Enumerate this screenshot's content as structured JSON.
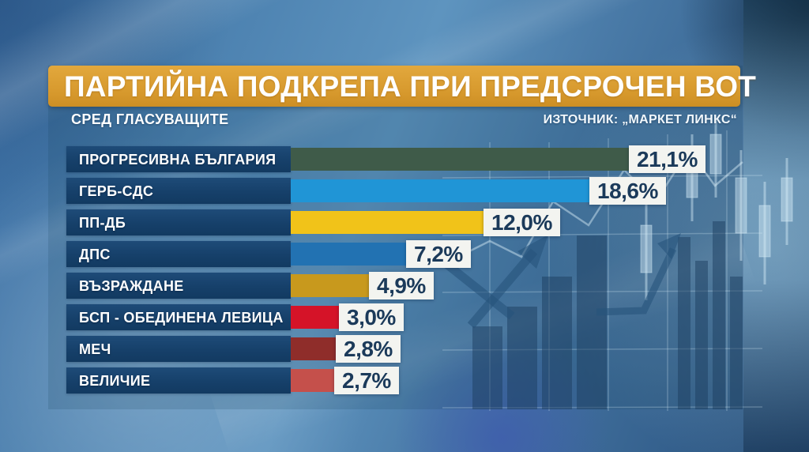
{
  "header": {
    "title": "ПАРТИЙНА ПОДКРЕПА ПРИ ПРЕДСРОЧЕН ВОТ",
    "subtitle": "СРЕД ГЛАСУВАЩИТЕ",
    "source": "ИЗТОЧНИК: „МАРКЕТ ЛИНКС“"
  },
  "chart_data": {
    "type": "bar",
    "orientation": "horizontal",
    "title": "ПАРТИЙНА ПОДКРЕПА ПРИ ПРЕДСРОЧЕН ВОТ",
    "subtitle": "СРЕД ГЛАСУВАЩИТЕ",
    "source": "ИЗТОЧНИК: „МАРКЕТ ЛИНКС“",
    "categories": [
      "ПРОГРЕСИВНА БЪЛГАРИЯ",
      "ГЕРБ-СДС",
      "ПП-ДБ",
      "ДПС",
      "ВЪЗРАЖДАНЕ",
      "БСП - ОБЕДИНЕНА ЛЕВИЦА",
      "МЕЧ",
      "ВЕЛИЧИЕ"
    ],
    "values": [
      21.1,
      18.6,
      12.0,
      7.2,
      4.9,
      3.0,
      2.8,
      2.7
    ],
    "display_values": [
      "21,1%",
      "18,6%",
      "12,0%",
      "7,2%",
      "4,9%",
      "3,0%",
      "2,8%",
      "2,7%"
    ],
    "bar_colors": [
      "#3f5b49",
      "#2095d6",
      "#f1c319",
      "#2272b2",
      "#c8991d",
      "#d51328",
      "#8f2d2a",
      "#c5504b"
    ],
    "unit": "%",
    "xlim": [
      0,
      22
    ],
    "value_labels": true,
    "legend": false,
    "grid": false
  },
  "colors": {
    "banner_orange": "#d6982c",
    "label_navy": "#16406a",
    "value_box_bg": "#f3f4f0",
    "value_text_navy": "#1b3a5a",
    "text_white": "#ffffff",
    "background_blue": "#4a7fae"
  },
  "decor": {
    "background_motif": "financial-chart-candlesticks-grid-arrows"
  }
}
